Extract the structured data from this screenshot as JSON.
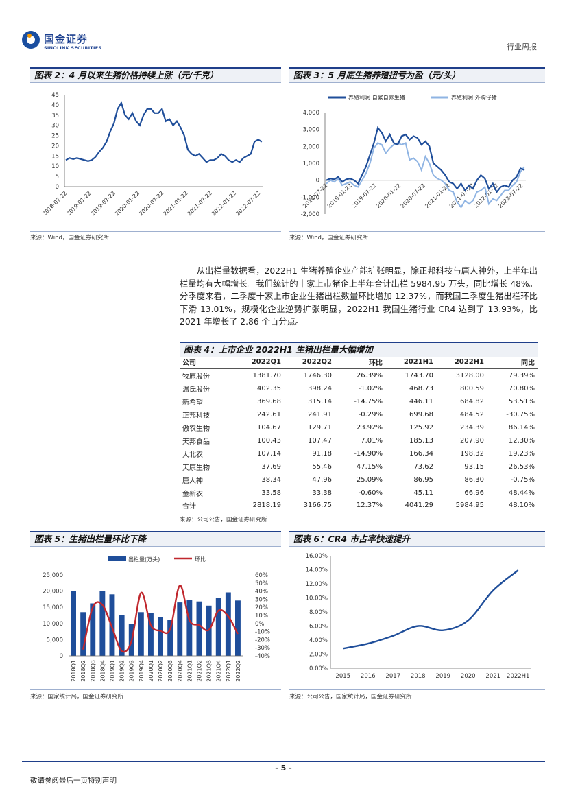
{
  "header": {
    "brand_cn": "国金证券",
    "brand_en": "SINOLINK SECURITIES",
    "report_type": "行业周报"
  },
  "figure2": {
    "title": "图表 2：4 月以来生猪价格持续上涨（元/千克）",
    "source": "来源：Wind，国金证券研究所",
    "chart_data": {
      "type": "line",
      "title": "",
      "ylim": [
        0,
        45
      ],
      "yticks": [
        "45",
        "40",
        "35",
        "30",
        "25",
        "20",
        "15",
        "10",
        "5",
        "0"
      ],
      "xticks": [
        "2018-07-22",
        "2019-01-22",
        "2019-07-22",
        "2020-01-22",
        "2020-07-22",
        "2021-01-22",
        "2021-07-22",
        "2022-01-22",
        "2022-07-22"
      ],
      "series": [
        {
          "color": "#1f4e9a",
          "values": [
            13,
            14,
            13.5,
            14,
            13.5,
            13,
            12.5,
            13,
            14.5,
            17,
            19,
            22,
            27,
            31,
            38,
            41,
            35,
            33,
            36,
            32,
            30,
            35,
            38,
            38,
            36,
            36,
            38,
            32,
            33,
            30,
            32,
            29,
            25,
            18,
            16,
            15,
            16,
            14,
            12,
            13,
            13,
            14,
            16,
            15,
            13,
            12,
            13,
            12,
            14,
            15,
            16,
            22,
            23,
            22
          ]
        }
      ]
    }
  },
  "figure3": {
    "title": "图表 3：5 月底生猪养殖扭亏为盈（元/头）",
    "source": "来源：Wind，国金证券研究所",
    "chart_data": {
      "type": "line",
      "title": "",
      "ylim": [
        -2000,
        4000
      ],
      "yticks": [
        "4,000",
        "3,000",
        "2,000",
        "1,000",
        "0",
        "-1,000",
        "-2,000"
      ],
      "xticks": [
        "2018-07-22",
        "2019-01-22",
        "2019-07-22",
        "2020-01-22",
        "2020-07-22",
        "2021-01-22",
        "2021-07-22",
        "2022-01-22",
        "2022-07-22"
      ],
      "series": [
        {
          "name": "养殖利润:自繁自养生猪",
          "color": "#1f4e9a",
          "values": [
            0,
            100,
            50,
            200,
            -100,
            50,
            100,
            0,
            -200,
            300,
            800,
            1500,
            2200,
            3100,
            2800,
            2300,
            2700,
            2200,
            2100,
            2600,
            2700,
            2400,
            2600,
            2500,
            2100,
            2300,
            2000,
            1000,
            800,
            600,
            300,
            -100,
            -200,
            -500,
            -200,
            -600,
            -300,
            -500,
            0,
            300,
            100,
            -500,
            -200,
            -700,
            -400,
            -300,
            -400,
            0,
            200,
            700,
            600
          ]
        },
        {
          "name": "养殖利润:外购仔猪",
          "color": "#8fb4e3",
          "values": [
            -200,
            0,
            -100,
            100,
            -300,
            -200,
            -100,
            -300,
            -400,
            0,
            400,
            1000,
            1900,
            2200,
            2100,
            1600,
            1900,
            2100,
            2200,
            2100,
            2200,
            1200,
            1300,
            1100,
            600,
            1400,
            1000,
            300,
            100,
            0,
            -200,
            -600,
            -700,
            -1300,
            -1600,
            -1200,
            -1400,
            -1200,
            -700,
            -600,
            -400,
            -1400,
            -1100,
            -1200,
            -900,
            -600,
            -600,
            -300,
            -100,
            500,
            800
          ]
        }
      ],
      "legend": "top"
    }
  },
  "paragraph": "从出栏量数据看，2022H1 生猪养殖企业产能扩张明显，除正邦科技与唐人神外，上半年出栏量均有大幅增长。我们统计的十家上市猪企上半年合计出栏 5984.95 万头，同比增长 48%。分季度来看，二季度十家上市企业生猪出栏数量环比增加 12.37%，而我国二季度生猪出栏环比下滑 13.01%，规模化企业逆势扩张明显，2022H1 我国生猪行业 CR4 达到了 13.93%，比 2021 年增长了 2.86 个百分点。",
  "table4": {
    "title": "图表 4：上市企业 2022H1 生猪出栏量大幅增加",
    "source": "来源：公司公告，国金证券研究所",
    "headers": [
      "公司",
      "2022Q1",
      "2022Q2",
      "环比",
      "2021H1",
      "2022H1",
      "同比"
    ],
    "rows": [
      [
        "牧原股份",
        "1381.70",
        "1746.30",
        "26.39%",
        "1743.70",
        "3128.00",
        "79.39%"
      ],
      [
        "温氏股份",
        "402.35",
        "398.24",
        "-1.02%",
        "468.73",
        "800.59",
        "70.80%"
      ],
      [
        "新希望",
        "369.68",
        "315.14",
        "-14.75%",
        "446.11",
        "684.82",
        "53.51%"
      ],
      [
        "正邦科技",
        "242.61",
        "241.91",
        "-0.29%",
        "699.68",
        "484.52",
        "-30.75%"
      ],
      [
        "傲农生物",
        "104.67",
        "129.71",
        "23.92%",
        "125.92",
        "234.39",
        "86.14%"
      ],
      [
        "天邦食品",
        "100.43",
        "107.47",
        "7.01%",
        "185.13",
        "207.90",
        "12.30%"
      ],
      [
        "大北农",
        "107.14",
        "91.18",
        "-14.90%",
        "166.34",
        "198.32",
        "19.23%"
      ],
      [
        "天康生物",
        "37.69",
        "55.46",
        "47.15%",
        "73.62",
        "93.15",
        "26.53%"
      ],
      [
        "唐人神",
        "38.34",
        "47.96",
        "25.09%",
        "86.95",
        "86.30",
        "-0.75%"
      ],
      [
        "金新农",
        "33.58",
        "33.38",
        "-0.60%",
        "45.11",
        "66.96",
        "48.44%"
      ],
      [
        "合计",
        "2818.19",
        "3166.75",
        "12.37%",
        "4041.29",
        "5984.95",
        "48.10%"
      ]
    ]
  },
  "figure5": {
    "title": "图表 5：生猪出栏量环比下降",
    "source": "来源：国家统计局，国金证券研究所",
    "chart_data": {
      "type": "bar",
      "title": "",
      "categories": [
        "2018Q1",
        "2018Q2",
        "2018Q3",
        "2018Q4",
        "2019Q1",
        "2019Q2",
        "2019Q3",
        "2019Q4",
        "2020Q1",
        "2020Q2",
        "2020Q3",
        "2020Q4",
        "2021Q1",
        "2021Q2",
        "2021Q3",
        "2021Q4",
        "2022Q1",
        "2022Q2"
      ],
      "ylim": [
        0,
        25000
      ],
      "y2lim": [
        -40,
        60
      ],
      "yticks": [
        "25,000",
        "20,000",
        "15,000",
        "10,000",
        "5,000",
        "0"
      ],
      "y2ticks": [
        "60%",
        "50%",
        "40%",
        "30%",
        "20%",
        "10%",
        "0%",
        "-10%",
        "-20%",
        "-30%",
        "-40%"
      ],
      "series": [
        {
          "name": "出栏量(万头)",
          "color": "#1f4e9a",
          "axis": "left",
          "values": [
            20000,
            13500,
            16200,
            20000,
            19000,
            12500,
            9800,
            13500,
            13200,
            12000,
            11200,
            16500,
            17200,
            16800,
            15500,
            18000,
            19600,
            17100
          ]
        },
        {
          "name": "环比",
          "color": "#c0272d",
          "axis": "right",
          "type": "line",
          "values": [
            null,
            -32,
            20,
            23,
            -5,
            -34,
            -22,
            38,
            -2,
            -9,
            -7,
            47,
            4,
            -2,
            -8,
            16,
            9,
            -13
          ]
        }
      ],
      "legend": "top"
    }
  },
  "figure6": {
    "title": "图表 6：CR4 市占率快速提升",
    "source": "来源：公司公告，国家统计局，国金证券研究所",
    "chart_data": {
      "type": "line",
      "title": "",
      "categories": [
        "2015",
        "2016",
        "2017",
        "2018",
        "2019",
        "2020",
        "2021",
        "2022H1"
      ],
      "ylim": [
        0,
        16
      ],
      "yticks": [
        "16.00%",
        "14.00%",
        "12.00%",
        "10.00%",
        "8.00%",
        "6.00%",
        "4.00%",
        "2.00%",
        "0.00%"
      ],
      "series": [
        {
          "color": "#1f4e9a",
          "values": [
            2.8,
            3.5,
            4.6,
            6.0,
            5.4,
            6.8,
            11.07,
            13.93
          ]
        }
      ]
    }
  },
  "footer": {
    "page": "- 5 -",
    "disclaimer": "敬请参阅最后一页特别声明"
  }
}
